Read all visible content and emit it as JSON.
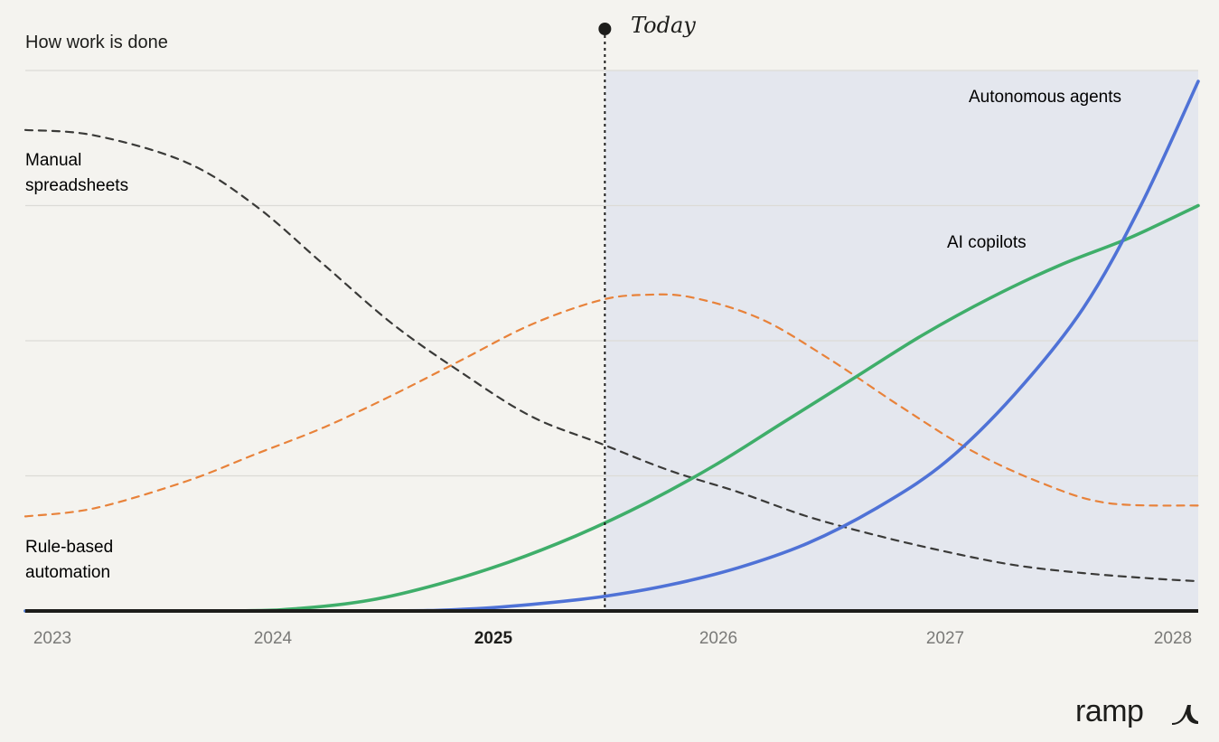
{
  "chart_data": {
    "type": "line",
    "title": "How work is done",
    "x_ticks": [
      "2023",
      "2024",
      "2025",
      "2026",
      "2027",
      "2028"
    ],
    "x_tick_bold": "2025",
    "xlim": [
      2023,
      2028.1
    ],
    "ylim": [
      0,
      100
    ],
    "grid": true,
    "today": {
      "label": "Today",
      "x": 2025.52
    },
    "series": [
      {
        "name": "Manual\nspreadsheets",
        "label_lines": [
          "Manual",
          "spreadsheets"
        ],
        "color": "#3a3a38",
        "style": "dashed",
        "x": [
          2023,
          2023.3,
          2023.7,
          2024,
          2024.3,
          2024.6,
          2024.9,
          2025.2,
          2025.5,
          2025.8,
          2026.1,
          2026.4,
          2026.7,
          2027,
          2027.3,
          2027.6,
          2027.9,
          2028.1
        ],
        "values": [
          89,
          88,
          83,
          75,
          64,
          53,
          44,
          36,
          31,
          26,
          22,
          17.5,
          14,
          11,
          8.5,
          7,
          6,
          5.5
        ]
      },
      {
        "name": "Rule-based\nautomation",
        "label_lines": [
          "Rule-based",
          "automation"
        ],
        "color": "#e8823a",
        "style": "dashed",
        "x": [
          2023,
          2023.3,
          2023.7,
          2024,
          2024.3,
          2024.6,
          2024.9,
          2025.2,
          2025.5,
          2025.7,
          2025.9,
          2026.2,
          2026.5,
          2026.8,
          2027.1,
          2027.4,
          2027.7,
          2028.1
        ],
        "values": [
          17.5,
          19,
          24,
          29,
          34,
          40,
          46.5,
          53,
          57.5,
          58.5,
          58,
          54,
          46.5,
          38,
          30,
          24,
          20,
          19.5
        ]
      },
      {
        "name": "AI copilots",
        "label_lines": [
          "AI copilots"
        ],
        "color": "#3fae6a",
        "style": "solid",
        "x": [
          2023,
          2023.9,
          2024.2,
          2024.5,
          2024.8,
          2025.1,
          2025.4,
          2025.7,
          2026,
          2026.3,
          2026.6,
          2026.9,
          2027.2,
          2027.5,
          2027.8,
          2028.1
        ],
        "values": [
          0,
          0,
          0.5,
          2,
          5,
          9,
          14,
          20,
          27,
          35,
          43,
          51,
          58,
          64,
          69,
          75
        ]
      },
      {
        "name": "Autonomous agents",
        "label_lines": [
          "Autonomous agents"
        ],
        "color": "#4f72d6",
        "style": "solid",
        "x": [
          2023,
          2024.5,
          2024.9,
          2025.2,
          2025.5,
          2025.8,
          2026.1,
          2026.4,
          2026.7,
          2027,
          2027.3,
          2027.6,
          2027.85,
          2028.1
        ],
        "values": [
          0,
          0,
          0.3,
          1.2,
          2.6,
          4.8,
          8,
          12.5,
          19,
          27.5,
          40,
          56,
          75,
          98
        ]
      }
    ]
  },
  "brand": {
    "name": "ramp"
  }
}
